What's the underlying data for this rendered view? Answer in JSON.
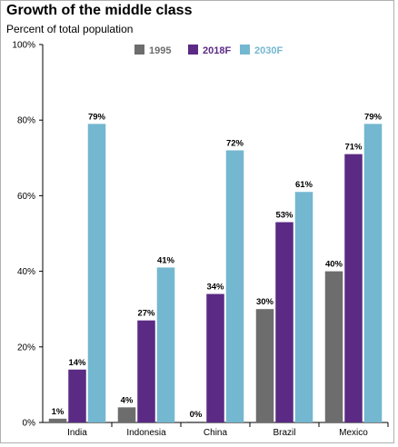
{
  "title": "Growth of the middle class",
  "subtitle": "Percent of total population",
  "colors": {
    "1995": "#6d6d6d",
    "2018F": "#5b2a84",
    "2030F": "#74b7d0"
  },
  "chart_data": {
    "type": "bar",
    "categories": [
      "India",
      "Indonesia",
      "China",
      "Brazil",
      "Mexico"
    ],
    "series": [
      {
        "name": "1995",
        "values": [
          1,
          4,
          0,
          30,
          40
        ],
        "labels": [
          "1%",
          "4%",
          "0%",
          "30%",
          "40%"
        ]
      },
      {
        "name": "2018F",
        "values": [
          14,
          27,
          34,
          53,
          71
        ],
        "labels": [
          "14%",
          "27%",
          "34%",
          "53%",
          "71%"
        ]
      },
      {
        "name": "2030F",
        "values": [
          79,
          41,
          72,
          61,
          79
        ],
        "labels": [
          "79%",
          "41%",
          "72%",
          "61%",
          "79%"
        ]
      }
    ],
    "y_ticks": [
      "0%",
      "20%",
      "40%",
      "60%",
      "80%",
      "100%"
    ],
    "ylim": [
      0,
      100
    ],
    "grid": false,
    "legend": "top-center"
  }
}
